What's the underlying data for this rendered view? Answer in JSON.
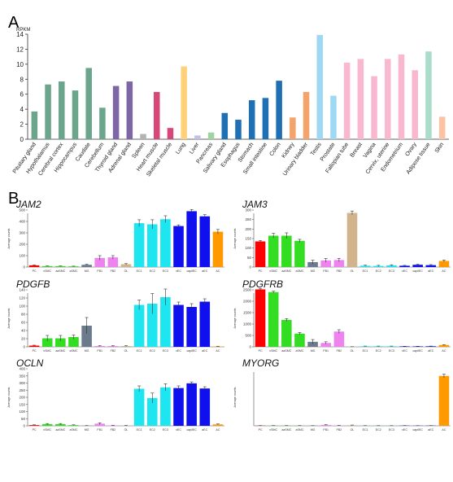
{
  "panels": {
    "a_label": "A",
    "b_label": "B"
  },
  "chart_data": [
    {
      "type": "bar",
      "panel": "A",
      "ylabel": "RPKM",
      "ylim": [
        0,
        14
      ],
      "yticks": [
        0,
        2,
        4,
        6,
        8,
        10,
        12,
        14
      ],
      "grid": false,
      "categories": [
        "Pituitary gland",
        "Hypothalamus",
        "Cerebral cortex",
        "Hippocampus",
        "Caudate",
        "Cerebellum",
        "Thyroid gland",
        "Adrenal gland",
        "Spleen",
        "Heart muscle",
        "Skeletal muscle",
        "Lung",
        "Liver",
        "Pancreas",
        "Salivary gland",
        "Esophagus",
        "Stomach",
        "Small intestine",
        "Colon",
        "Kidney",
        "Urinary bladder",
        "Testis",
        "Prostate",
        "Fallopian tube",
        "Breast",
        "Vagina",
        "Cervix, uterine",
        "Endometrium",
        "Ovary",
        "Adipose tissue",
        "Skin"
      ],
      "values": [
        3.7,
        7.3,
        7.7,
        6.5,
        9.5,
        4.2,
        7.1,
        7.7,
        0.7,
        6.3,
        1.5,
        9.7,
        0.5,
        0.9,
        3.5,
        2.6,
        5.2,
        5.5,
        7.8,
        2.9,
        6.3,
        13.9,
        5.8,
        10.2,
        10.7,
        8.4,
        10.7,
        11.3,
        9.2,
        11.7,
        3.0
      ],
      "colors": [
        "#6aa58c",
        "#6aa58c",
        "#6aa58c",
        "#6aa58c",
        "#6aa58c",
        "#6aa58c",
        "#7e65a6",
        "#7e65a6",
        "#b3b3b3",
        "#d9467a",
        "#d9467a",
        "#ffd27a",
        "#c6bde8",
        "#9fd4a0",
        "#1f6fb4",
        "#1f6fb4",
        "#1f6fb4",
        "#1f6fb4",
        "#1f6fb4",
        "#f4a46a",
        "#f4a46a",
        "#9ed8f2",
        "#9ed8f2",
        "#f9b8d0",
        "#f9b8d0",
        "#f9b8d0",
        "#f9b8d0",
        "#f9b8d0",
        "#f9b8d0",
        "#a9dcc9",
        "#f9c3a4"
      ]
    },
    {
      "type": "bar",
      "panel": "B",
      "title": "JAM2",
      "ylabel": "Average counts",
      "ylim": [
        0,
        500
      ],
      "yticks": [
        0,
        100,
        200,
        300,
        400,
        500
      ],
      "categories": [
        "PC",
        "vSMC",
        "aaSMC",
        "aSMC",
        "MG",
        "FB1",
        "FB2",
        "OL",
        "EC1",
        "EC2",
        "EC3",
        "vEC",
        "capilEC",
        "aEC",
        "AC"
      ],
      "values": [
        15,
        8,
        8,
        6,
        20,
        80,
        85,
        25,
        385,
        375,
        420,
        360,
        490,
        445,
        310
      ],
      "errors": [
        3,
        2,
        2,
        2,
        4,
        20,
        15,
        5,
        30,
        40,
        30,
        10,
        15,
        15,
        20
      ],
      "colors": [
        "#ff0000",
        "#33dd22",
        "#33dd22",
        "#33dd22",
        "#6b7b8c",
        "#ee82ee",
        "#ee82ee",
        "#d2b48c",
        "#1ee6f0",
        "#1ee6f0",
        "#1ee6f0",
        "#1010ee",
        "#1010ee",
        "#1010ee",
        "#ff9900"
      ]
    },
    {
      "type": "bar",
      "panel": "B",
      "title": "JAM3",
      "ylabel": "Average counts",
      "ylim": [
        0,
        300
      ],
      "yticks": [
        0,
        50,
        100,
        150,
        200,
        250,
        300
      ],
      "categories": [
        "PC",
        "vSMC",
        "aaSMC",
        "aSMC",
        "MG",
        "FB1",
        "FB2",
        "OL",
        "EC1",
        "EC2",
        "EC3",
        "vEC",
        "capilEC",
        "aEC",
        "AC"
      ],
      "values": [
        135,
        165,
        165,
        138,
        26,
        35,
        37,
        285,
        7,
        6,
        9,
        7,
        12,
        10,
        32
      ],
      "errors": [
        5,
        12,
        15,
        8,
        10,
        10,
        9,
        10,
        3,
        3,
        3,
        2,
        3,
        3,
        5
      ],
      "colors": [
        "#ff0000",
        "#33dd22",
        "#33dd22",
        "#33dd22",
        "#6b7b8c",
        "#ee82ee",
        "#ee82ee",
        "#d2b48c",
        "#1ee6f0",
        "#1ee6f0",
        "#1ee6f0",
        "#1010ee",
        "#1010ee",
        "#1010ee",
        "#ff9900"
      ]
    },
    {
      "type": "bar",
      "panel": "B",
      "title": "PDGFB",
      "ylabel": "Average counts",
      "ylim": [
        0,
        140
      ],
      "yticks": [
        0,
        20,
        40,
        60,
        80,
        100,
        120,
        140
      ],
      "categories": [
        "PC",
        "vSMC",
        "aaSMC",
        "aSMC",
        "MG",
        "FB1",
        "FB2",
        "OL",
        "EC1",
        "EC2",
        "EC3",
        "vEC",
        "capilEC",
        "aEC",
        "AC"
      ],
      "values": [
        3,
        21,
        21,
        24,
        52,
        2,
        2,
        2,
        103,
        106,
        122,
        103,
        98,
        111,
        1
      ],
      "errors": [
        1,
        7,
        7,
        5,
        20,
        1,
        1,
        1,
        12,
        25,
        20,
        7,
        8,
        7,
        0.5
      ],
      "colors": [
        "#ff0000",
        "#33dd22",
        "#33dd22",
        "#33dd22",
        "#6b7b8c",
        "#ee82ee",
        "#ee82ee",
        "#d2b48c",
        "#1ee6f0",
        "#1ee6f0",
        "#1ee6f0",
        "#1010ee",
        "#1010ee",
        "#1010ee",
        "#ff9900"
      ]
    },
    {
      "type": "bar",
      "panel": "B",
      "title": "PDGFRB",
      "ylabel": "Average counts",
      "ylim": [
        0,
        2500
      ],
      "yticks": [
        0,
        500,
        1000,
        1500,
        2000,
        2500
      ],
      "categories": [
        "PC",
        "vSMC",
        "aaSMC",
        "aSMC",
        "MG",
        "FB1",
        "FB2",
        "OL",
        "EC1",
        "EC2",
        "EC3",
        "vEC",
        "capilEC",
        "aEC",
        "AC"
      ],
      "values": [
        2520,
        2400,
        1180,
        580,
        220,
        170,
        670,
        5,
        25,
        25,
        25,
        20,
        20,
        25,
        80
      ],
      "errors": [
        40,
        40,
        60,
        50,
        100,
        50,
        80,
        2,
        8,
        8,
        8,
        5,
        5,
        8,
        15
      ],
      "colors": [
        "#ff0000",
        "#33dd22",
        "#33dd22",
        "#33dd22",
        "#6b7b8c",
        "#ee82ee",
        "#ee82ee",
        "#d2b48c",
        "#1ee6f0",
        "#1ee6f0",
        "#1ee6f0",
        "#1010ee",
        "#1010ee",
        "#1010ee",
        "#ff9900"
      ]
    },
    {
      "type": "bar",
      "panel": "B",
      "title": "OCLN",
      "ylabel": "Average counts",
      "ylim": [
        0,
        400
      ],
      "yticks": [
        0,
        50,
        100,
        150,
        200,
        250,
        300,
        350,
        400
      ],
      "categories": [
        "PC",
        "vSMC",
        "aaSMC",
        "aSMC",
        "MG",
        "FB1",
        "FB2",
        "OL",
        "EC1",
        "EC2",
        "EC3",
        "vEC",
        "capilEC",
        "aEC",
        "AC"
      ],
      "values": [
        5,
        12,
        12,
        5,
        1,
        15,
        3,
        2,
        260,
        195,
        270,
        265,
        298,
        262,
        10
      ],
      "errors": [
        2,
        4,
        4,
        2,
        1,
        6,
        1,
        1,
        20,
        35,
        25,
        15,
        10,
        12,
        3
      ],
      "colors": [
        "#ff0000",
        "#33dd22",
        "#33dd22",
        "#33dd22",
        "#6b7b8c",
        "#ee82ee",
        "#ee82ee",
        "#d2b48c",
        "#1ee6f0",
        "#1ee6f0",
        "#1ee6f0",
        "#1010ee",
        "#1010ee",
        "#1010ee",
        "#ff9900"
      ]
    },
    {
      "type": "bar",
      "panel": "B",
      "title": "MYORG",
      "ylabel": "Average counts",
      "ylim": [
        0,
        800
      ],
      "yticks": [],
      "categories": [
        "PC",
        "vSMC",
        "aaSMC",
        "aSMC",
        "MG",
        "FB1",
        "FB2",
        "OL",
        "EC1",
        "EC2",
        "EC3",
        "vEC",
        "capilEC",
        "aEC",
        "AC"
      ],
      "values": [
        3,
        3,
        3,
        3,
        2,
        12,
        4,
        8,
        2,
        2,
        2,
        3,
        2,
        3,
        700
      ],
      "errors": [
        1,
        1,
        1,
        1,
        1,
        4,
        2,
        3,
        1,
        1,
        1,
        1,
        1,
        1,
        25
      ],
      "colors": [
        "#ff0000",
        "#33dd22",
        "#33dd22",
        "#33dd22",
        "#6b7b8c",
        "#ee82ee",
        "#ee82ee",
        "#d2b48c",
        "#1ee6f0",
        "#1ee6f0",
        "#1ee6f0",
        "#1010ee",
        "#1010ee",
        "#1010ee",
        "#ff9900"
      ]
    }
  ]
}
